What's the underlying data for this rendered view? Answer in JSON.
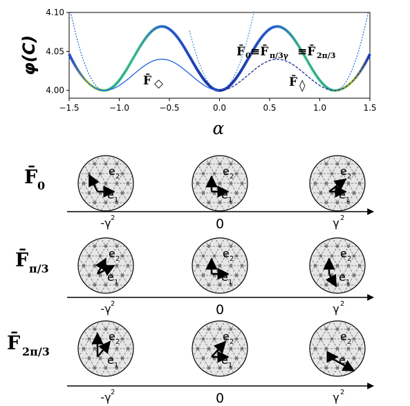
{
  "chart_data": {
    "type": "line",
    "ylabel": "φ(C)",
    "xlabel": "α",
    "xlim": [
      -1.5,
      1.5
    ],
    "ylim": [
      3.99,
      4.1
    ],
    "xticks": [
      "−1.5",
      "−1.0",
      "−0.5",
      "0.0",
      "0.5",
      "1.0",
      "1.5"
    ],
    "yticks": [
      "4.00",
      "4.05",
      "4.10"
    ],
    "series": [
      {
        "style": "thick-gradient",
        "barrier": 0.082,
        "minimum": 1.15,
        "range": [
          -1.5,
          1.5
        ]
      },
      {
        "style": "thin-solid",
        "barrier": 0.04,
        "minimum": 1.15,
        "range": [
          -1.5,
          0.0
        ]
      },
      {
        "style": "dotted-outer",
        "barrier": 0.082,
        "minimum": 1.15,
        "range": [
          -0.3,
          1.5
        ]
      },
      {
        "style": "dashed-inner",
        "barrier": 0.04,
        "minimum": 1.15,
        "range": [
          0.0,
          1.5
        ]
      }
    ],
    "annotations": {
      "left": {
        "text": "F̄",
        "symbol": "◇"
      },
      "right": {
        "text": "F̄",
        "symbol": "◊"
      },
      "equiv": {
        "parts": [
          "F̄",
          "0",
          "≡F̄",
          "π/3γ",
          "≡F̄",
          "2π/3"
        ]
      }
    }
  },
  "rows": [
    {
      "label": "F̄",
      "sub": "0"
    },
    {
      "label": "F̄",
      "sub": "π/3"
    },
    {
      "label": "F̄",
      "sub": "2π/3"
    }
  ],
  "row_axis_labels": {
    "left": "-γ",
    "left_sup": "2",
    "center": "0",
    "right": "γ",
    "right_sup": "2"
  },
  "vector_labels": {
    "base": "e",
    "sub1": "1",
    "sub2": "2"
  },
  "colors": {
    "dark_curve": "#1a2a9a",
    "mid_curve": "#1f5fe0",
    "green_curve": "#4fd68c",
    "yellow_curve": "#d8e840"
  }
}
